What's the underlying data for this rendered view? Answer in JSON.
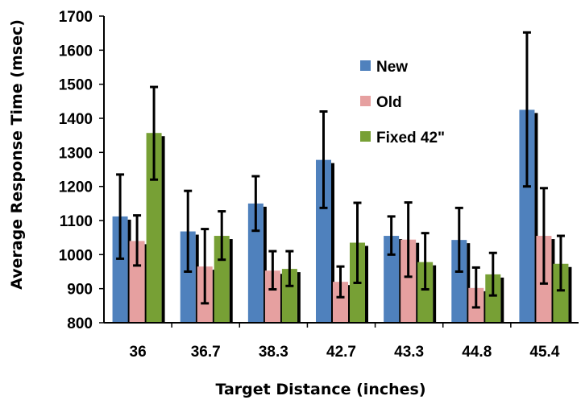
{
  "chart_data": {
    "type": "bar",
    "title": "",
    "xlabel": "Target Distance (inches)",
    "ylabel": "Average Response Time (msec)",
    "ylim": [
      800,
      1700
    ],
    "yticks": [
      "800",
      "900",
      "1000",
      "1100",
      "1200",
      "1300",
      "1400",
      "1500",
      "1600",
      "1700"
    ],
    "categories": [
      "36",
      "36.7",
      "38.3",
      "42.7",
      "43.3",
      "44.8",
      "45.4"
    ],
    "grid": false,
    "legend_position": "top-right",
    "series": [
      {
        "name": "New",
        "color": "#4f81bd",
        "values": [
          1112,
          1068,
          1150,
          1278,
          1055,
          1043,
          1425
        ],
        "err_low": [
          988,
          950,
          1070,
          1137,
          1000,
          950,
          1200
        ],
        "err_high": [
          1235,
          1187,
          1230,
          1420,
          1112,
          1137,
          1652
        ]
      },
      {
        "name": "Old",
        "color": "#e6a0a0",
        "values": [
          1040,
          965,
          953,
          920,
          1044,
          902,
          1055
        ],
        "err_low": [
          968,
          857,
          898,
          875,
          935,
          845,
          915
        ],
        "err_high": [
          1115,
          1075,
          1010,
          965,
          1153,
          962,
          1195
        ]
      },
      {
        "name": "Fixed 42\"",
        "color": "#77a035",
        "values": [
          1357,
          1055,
          958,
          1035,
          978,
          942,
          973
        ],
        "err_low": [
          1220,
          985,
          908,
          917,
          898,
          880,
          895
        ],
        "err_high": [
          1492,
          1127,
          1010,
          1152,
          1063,
          1005,
          1055
        ]
      }
    ]
  }
}
